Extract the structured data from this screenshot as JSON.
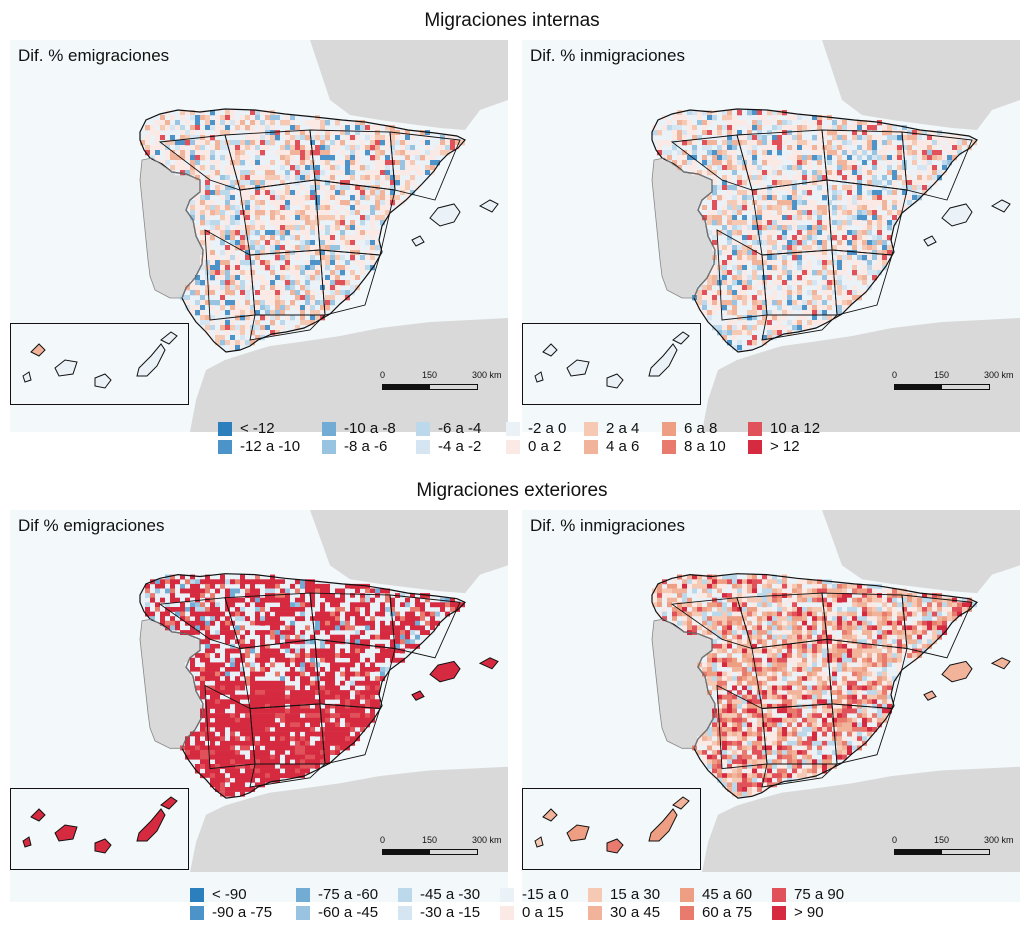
{
  "top": {
    "title": "Migraciones internas",
    "left_label": "Dif. % emigraciones",
    "right_label": "Dif. % inmigraciones",
    "legend": [
      [
        "< -12",
        "-12 a -10"
      ],
      [
        "-10 a -8",
        "-8 a -6"
      ],
      [
        "-6 a -4",
        "-4 a -2"
      ],
      [
        "-2 a 0",
        "0 a 2"
      ],
      [
        "2 a 4",
        "4 a 6"
      ],
      [
        "6 a 8",
        "8 a 10"
      ],
      [
        "10 a 12",
        "> 12"
      ]
    ]
  },
  "bottom": {
    "title": "Migraciones exteriores",
    "left_label": "Dif % emigraciones",
    "right_label": "Dif. % inmigraciones",
    "legend": [
      [
        "< -90",
        "-90 a -75"
      ],
      [
        "-75 a -60",
        "-60 a -45"
      ],
      [
        "-45 a -30",
        "-30 a -15"
      ],
      [
        "-15 a 0",
        "0 a 15"
      ],
      [
        "15 a 30",
        "30 a 45"
      ],
      [
        "45 a 60",
        "60 a 75"
      ],
      [
        "75 a 90",
        "> 90"
      ]
    ]
  },
  "scale": {
    "zero": "0",
    "mid": "150",
    "end": "300 km"
  },
  "colors": {
    "classes": [
      "#2b7fbd",
      "#4b93c8",
      "#72acd5",
      "#98c4e1",
      "#bcd9ec",
      "#d5e6f2",
      "#eaf1f7",
      "#fbe9e6",
      "#f6c9b5",
      "#f2b39b",
      "#ee9e82",
      "#e87a6e",
      "#e0515a",
      "#d52a3f"
    ],
    "sea": "#f3f8fb",
    "land_other": "#d9d9d9",
    "border": "#111111"
  }
}
